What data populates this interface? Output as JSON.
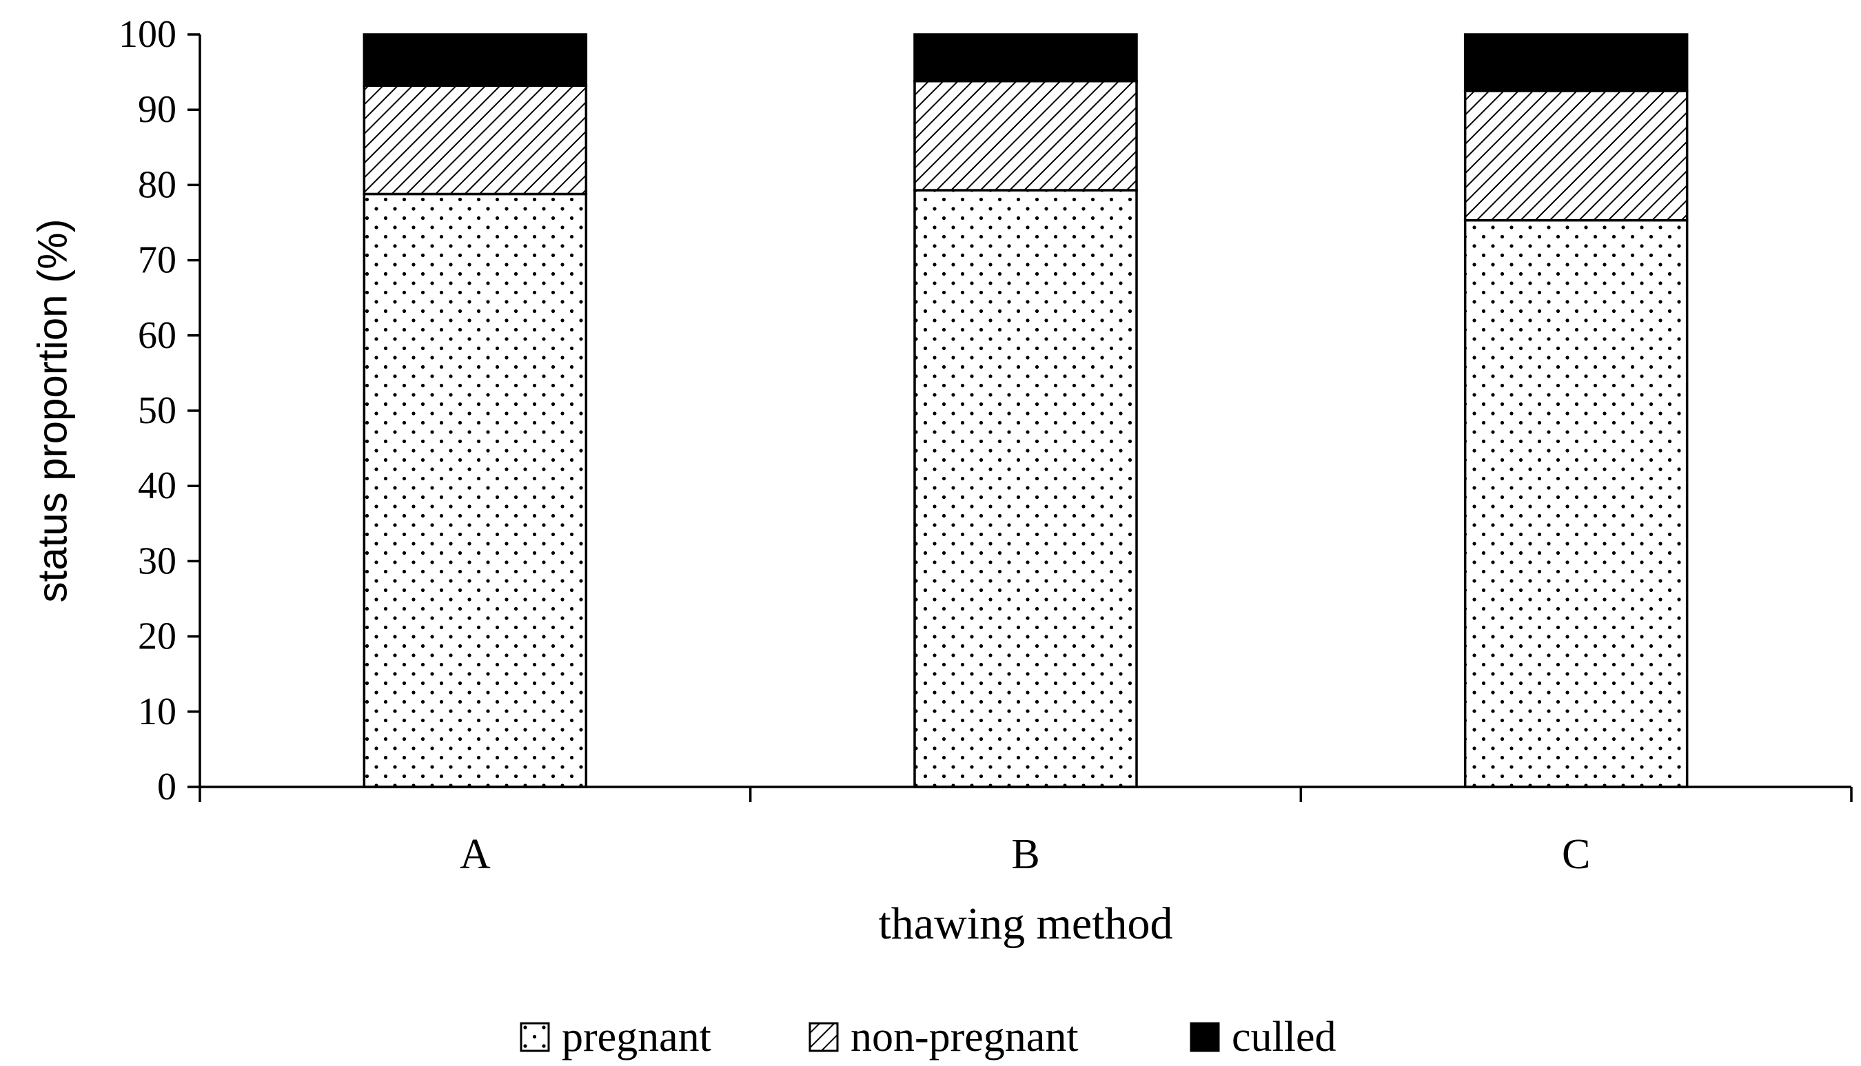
{
  "chart_data": {
    "type": "bar",
    "stacked": true,
    "title": "",
    "xlabel": "thawing method",
    "ylabel": "status proportion (%)",
    "ylim": [
      0,
      100
    ],
    "yticks": [
      0,
      10,
      20,
      30,
      40,
      50,
      60,
      70,
      80,
      90,
      100
    ],
    "categories": [
      "A",
      "B",
      "C"
    ],
    "series": [
      {
        "name": "pregnant",
        "pattern": "dots",
        "values": [
          78.8,
          79.3,
          75.3
        ]
      },
      {
        "name": "non-pregnant",
        "pattern": "diagonal-hatch",
        "values": [
          14.4,
          14.5,
          17.2
        ]
      },
      {
        "name": "culled",
        "pattern": "solid",
        "values": [
          6.8,
          6.2,
          7.5
        ]
      }
    ],
    "legend_position": "bottom-center",
    "grid": false
  },
  "colors": {
    "axis": "#000000",
    "solid_fill": "#000000",
    "background": "#ffffff"
  }
}
